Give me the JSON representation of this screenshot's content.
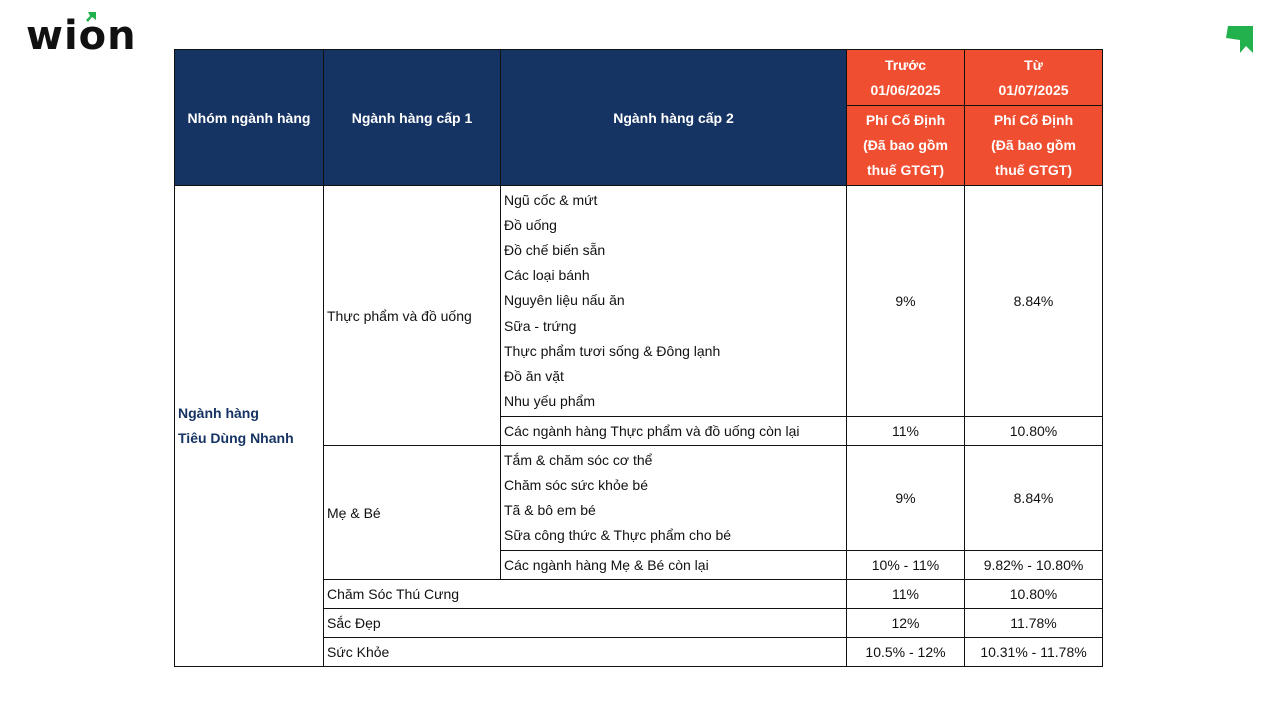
{
  "brand": {
    "name": "wion",
    "accent": "#22b14c"
  },
  "colors": {
    "header_navy": "#163463",
    "header_orange": "#f04e30"
  },
  "table": {
    "headers": {
      "group": "Nhóm ngành hàng",
      "level1": "Ngành hàng cấp 1",
      "level2": "Ngành hàng cấp 2",
      "before_line1": "Trước",
      "before_line2": "01/06/2025",
      "from_line1": "Từ",
      "from_line2": "01/07/2025",
      "fee_line1": "Phí Cố Định",
      "fee_line2": "(Đã bao gồm",
      "fee_line3": "thuế GTGT)"
    },
    "group_line1": "Ngành hàng",
    "group_line2": "Tiêu Dùng Nhanh",
    "food": {
      "level1": "Thực phẩm và đồ uống",
      "items": [
        "Ngũ cốc & mứt",
        "Đồ uống",
        "Đồ chế biến sẵn",
        "Các loại bánh",
        "Nguyên liệu nấu ăn",
        "Sữa - trứng",
        "Thực phẩm tươi sống & Đông lạnh",
        "Đồ ăn vặt",
        "Nhu yếu phẩm"
      ],
      "before": "9%",
      "from": "8.84%",
      "rest": "Các ngành hàng Thực phẩm và đồ uống còn lại",
      "rest_before": "11%",
      "rest_from": "10.80%"
    },
    "baby": {
      "level1": "Mẹ & Bé",
      "items": [
        "Tắm & chăm sóc cơ thể",
        "Chăm sóc sức khỏe bé",
        "Tã & bô em bé",
        "Sữa công thức & Thực phẩm cho bé"
      ],
      "before": "9%",
      "from": "8.84%",
      "rest": "Các ngành hàng Mẹ & Bé còn lại",
      "rest_before": "10% - 11%",
      "rest_from": "9.82% - 10.80%"
    },
    "others": [
      {
        "label": "Chăm Sóc Thú Cưng",
        "before": "11%",
        "from": "10.80%"
      },
      {
        "label": "Sắc Đẹp",
        "before": "12%",
        "from": "11.78%"
      },
      {
        "label": "Sức Khỏe",
        "before": "10.5% - 12%",
        "from": "10.31% - 11.78%"
      }
    ]
  }
}
